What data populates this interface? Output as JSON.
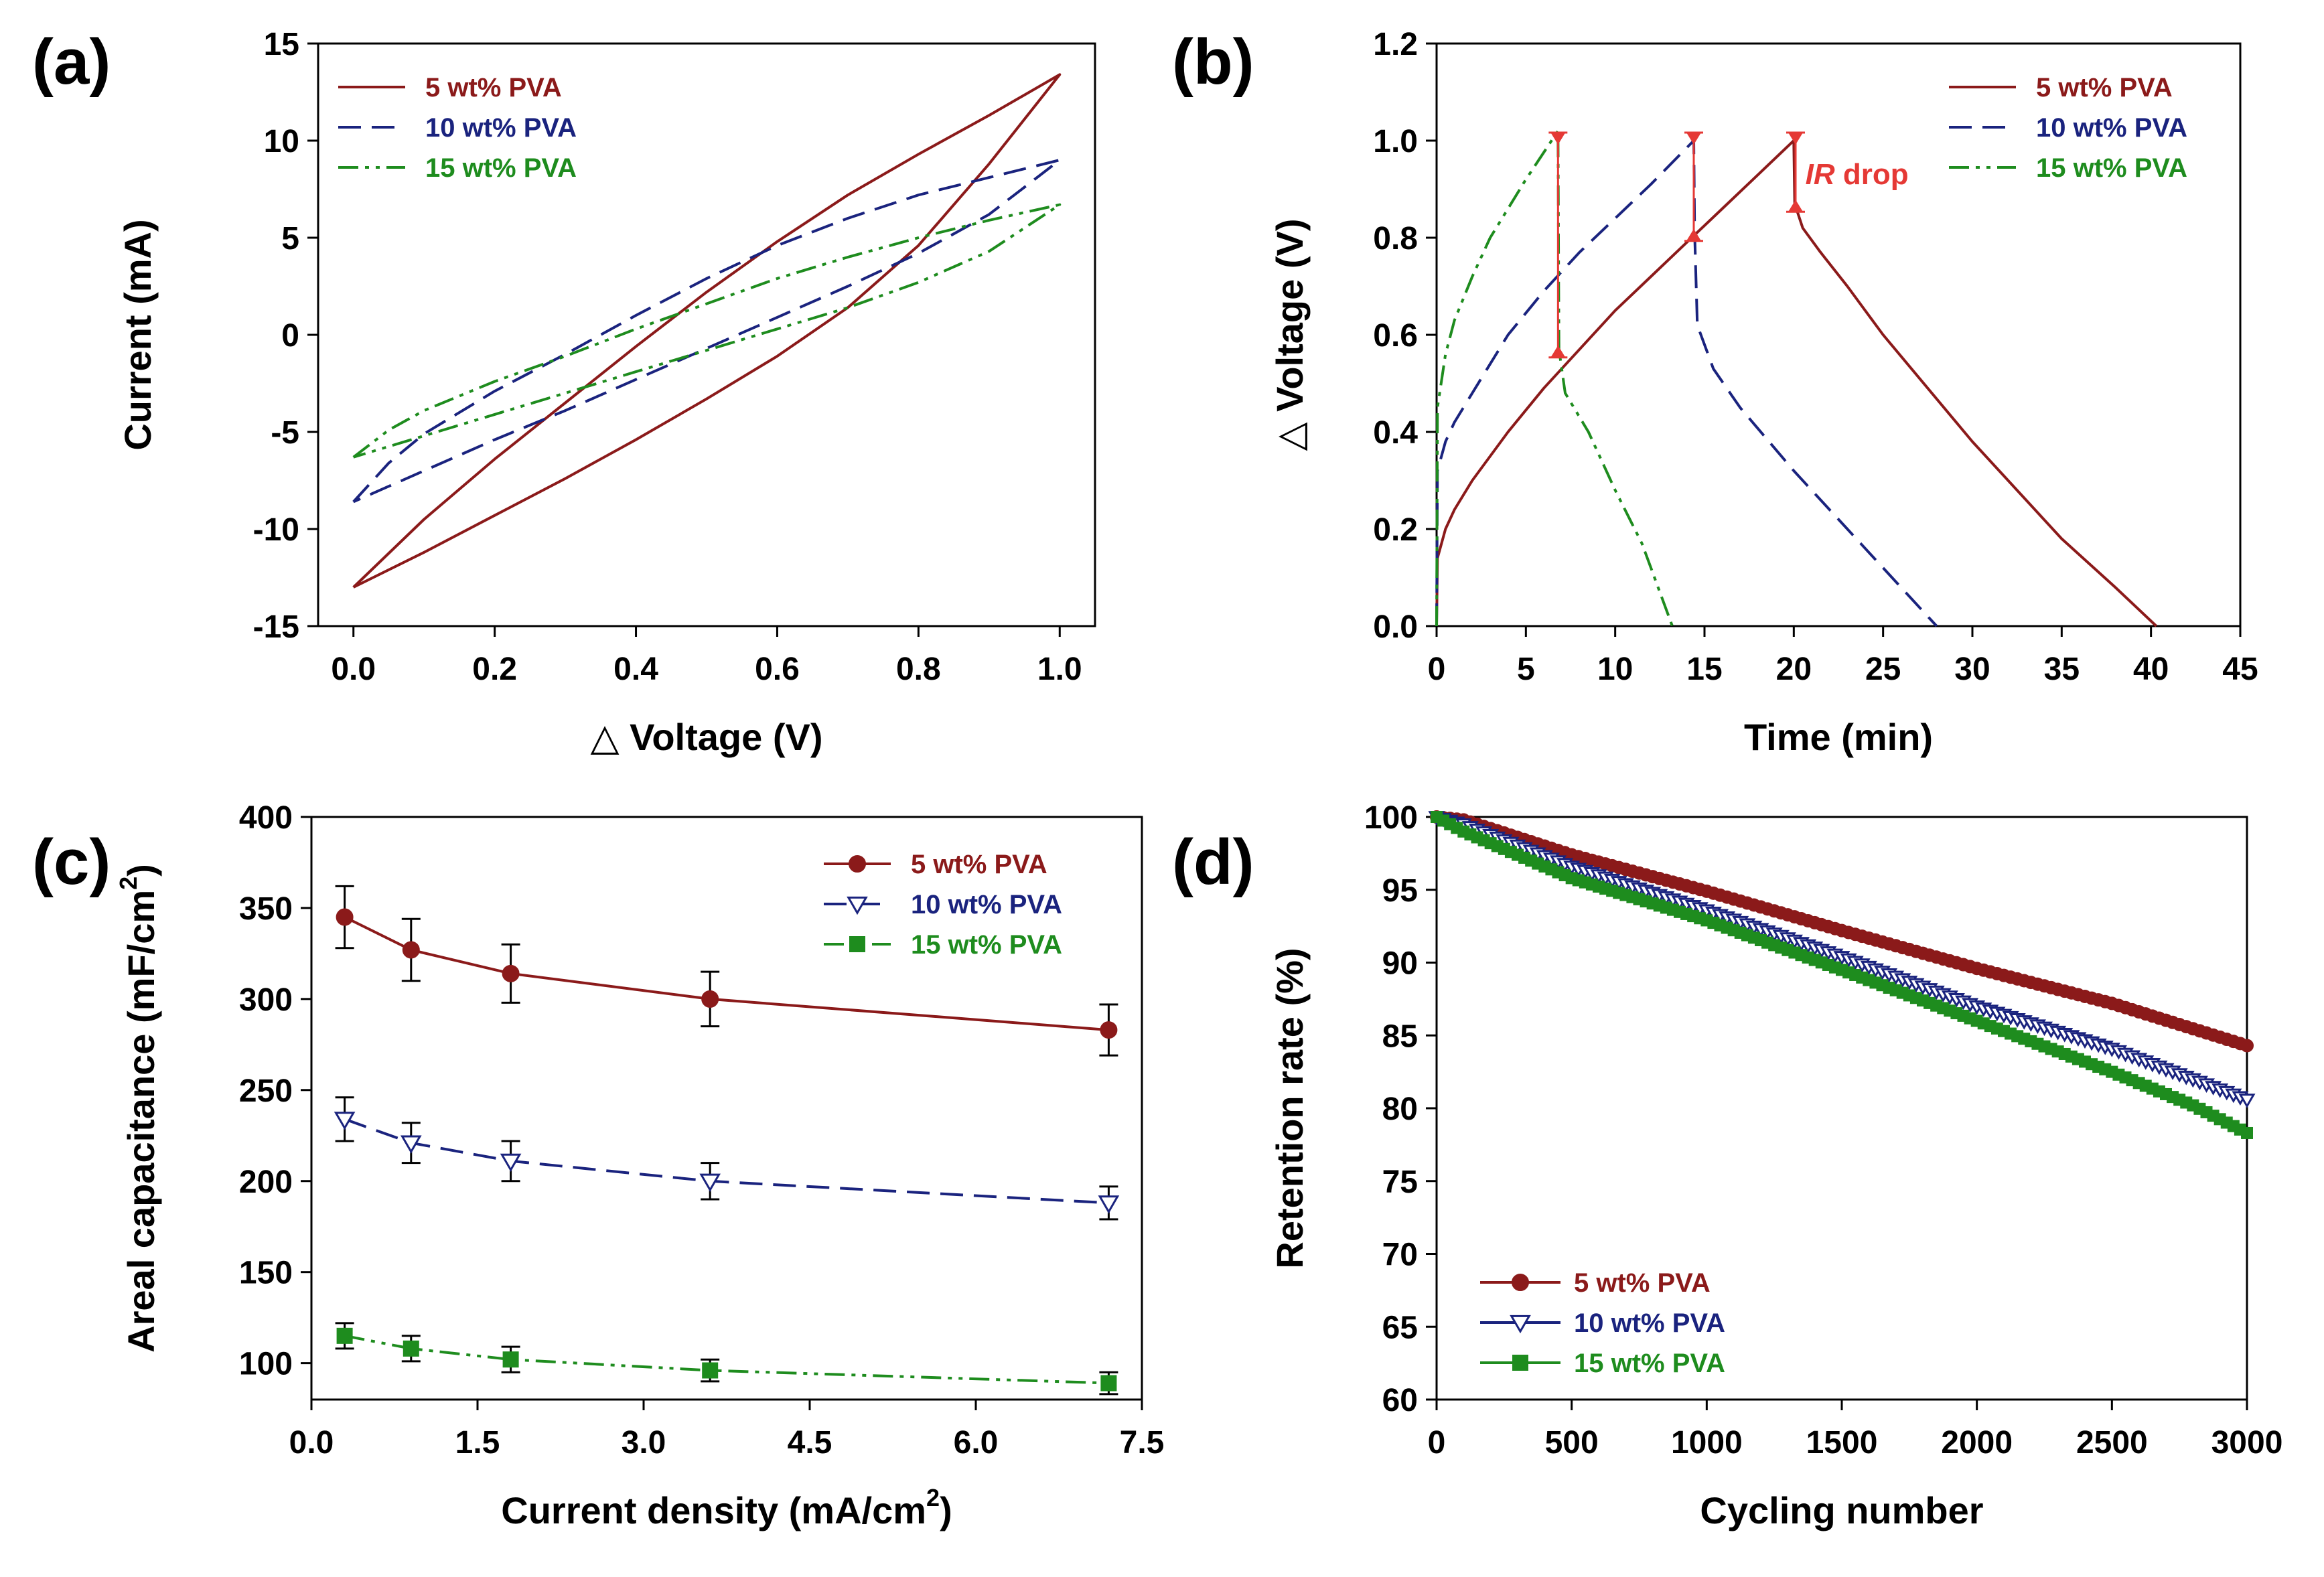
{
  "figure": {
    "colors": {
      "pva5": "#8B1A1A",
      "pva10": "#1A237E",
      "pva15": "#1E8C1E",
      "ir": "#E53935"
    }
  },
  "chart_data": [
    {
      "id": "a",
      "panel_label": "(a)",
      "type": "line",
      "title": "",
      "xlabel": "△ Voltage (V)",
      "ylabel": "Current (mA)",
      "xlim": [
        -0.05,
        1.05
      ],
      "ylim": [
        -15,
        15
      ],
      "xticks": [
        0.0,
        0.2,
        0.4,
        0.6,
        0.8,
        1.0
      ],
      "xtick_labels": [
        "0.0",
        "0.2",
        "0.4",
        "0.6",
        "0.8",
        "1.0"
      ],
      "yticks": [
        -15,
        -10,
        -5,
        0,
        5,
        10,
        15
      ],
      "ytick_labels": [
        "-15",
        "-10",
        "-5",
        "0",
        "5",
        "10",
        "15"
      ],
      "legend_position": "top-left",
      "series": [
        {
          "name": "5 wt% PVA",
          "style": "solid",
          "color_key": "pva5",
          "points": [
            [
              0.0,
              -13.0
            ],
            [
              0.1,
              -9.5
            ],
            [
              0.2,
              -6.4
            ],
            [
              0.3,
              -3.5
            ],
            [
              0.4,
              -0.6
            ],
            [
              0.5,
              2.2
            ],
            [
              0.6,
              4.8
            ],
            [
              0.7,
              7.2
            ],
            [
              0.8,
              9.3
            ],
            [
              0.9,
              11.3
            ],
            [
              1.0,
              13.4
            ],
            [
              0.9,
              8.8
            ],
            [
              0.8,
              4.6
            ],
            [
              0.7,
              1.4
            ],
            [
              0.6,
              -1.1
            ],
            [
              0.5,
              -3.3
            ],
            [
              0.4,
              -5.4
            ],
            [
              0.3,
              -7.4
            ],
            [
              0.2,
              -9.3
            ],
            [
              0.1,
              -11.2
            ],
            [
              0.0,
              -13.0
            ]
          ]
        },
        {
          "name": "10 wt% PVA",
          "style": "dashed",
          "color_key": "pva10",
          "points": [
            [
              0.0,
              -8.6
            ],
            [
              0.05,
              -6.6
            ],
            [
              0.1,
              -5.1
            ],
            [
              0.2,
              -2.9
            ],
            [
              0.3,
              -1.0
            ],
            [
              0.4,
              1.0
            ],
            [
              0.5,
              2.9
            ],
            [
              0.6,
              4.6
            ],
            [
              0.7,
              6.0
            ],
            [
              0.8,
              7.2
            ],
            [
              0.9,
              8.1
            ],
            [
              1.0,
              9.0
            ],
            [
              0.9,
              6.2
            ],
            [
              0.8,
              4.2
            ],
            [
              0.7,
              2.5
            ],
            [
              0.6,
              0.9
            ],
            [
              0.5,
              -0.7
            ],
            [
              0.4,
              -2.3
            ],
            [
              0.3,
              -3.9
            ],
            [
              0.2,
              -5.4
            ],
            [
              0.1,
              -7.0
            ],
            [
              0.0,
              -8.6
            ]
          ]
        },
        {
          "name": "15 wt% PVA",
          "style": "dashdot",
          "color_key": "pva15",
          "points": [
            [
              0.0,
              -6.3
            ],
            [
              0.05,
              -4.9
            ],
            [
              0.1,
              -3.9
            ],
            [
              0.2,
              -2.4
            ],
            [
              0.3,
              -1.1
            ],
            [
              0.4,
              0.3
            ],
            [
              0.5,
              1.6
            ],
            [
              0.6,
              2.9
            ],
            [
              0.7,
              4.0
            ],
            [
              0.8,
              5.0
            ],
            [
              0.9,
              5.9
            ],
            [
              1.0,
              6.7
            ],
            [
              0.9,
              4.3
            ],
            [
              0.8,
              2.7
            ],
            [
              0.7,
              1.4
            ],
            [
              0.6,
              0.3
            ],
            [
              0.5,
              -0.8
            ],
            [
              0.4,
              -1.9
            ],
            [
              0.3,
              -3.0
            ],
            [
              0.2,
              -4.1
            ],
            [
              0.1,
              -5.2
            ],
            [
              0.0,
              -6.3
            ]
          ]
        }
      ]
    },
    {
      "id": "b",
      "panel_label": "(b)",
      "type": "line",
      "title": "",
      "xlabel": "Time (min)",
      "ylabel": "△ Voltage (V)",
      "xlim": [
        0,
        45
      ],
      "ylim": [
        0,
        1.2
      ],
      "xticks": [
        0,
        5,
        10,
        15,
        20,
        25,
        30,
        35,
        40,
        45
      ],
      "xtick_labels": [
        "0",
        "5",
        "10",
        "15",
        "20",
        "25",
        "30",
        "35",
        "40",
        "45"
      ],
      "yticks": [
        0.0,
        0.2,
        0.4,
        0.6,
        0.8,
        1.0,
        1.2
      ],
      "ytick_labels": [
        "0.0",
        "0.2",
        "0.4",
        "0.6",
        "0.8",
        "1.0",
        "1.2"
      ],
      "legend_position": "top-right",
      "annotation": {
        "text": "IR drop",
        "x": 20.2,
        "y": 0.93
      },
      "ir_markers": [
        {
          "x": 6.8,
          "y_top": 1.0,
          "y_bottom": 0.57
        },
        {
          "x": 14.4,
          "y_top": 1.0,
          "y_bottom": 0.81
        },
        {
          "x": 20.1,
          "y_top": 1.0,
          "y_bottom": 0.87
        }
      ],
      "series": [
        {
          "name": "5 wt% PVA",
          "style": "solid",
          "color_key": "pva5",
          "points": [
            [
              0,
              0.0
            ],
            [
              0.05,
              0.14
            ],
            [
              0.5,
              0.2
            ],
            [
              1,
              0.24
            ],
            [
              2,
              0.3
            ],
            [
              4,
              0.4
            ],
            [
              6,
              0.49
            ],
            [
              8,
              0.57
            ],
            [
              10,
              0.65
            ],
            [
              12,
              0.72
            ],
            [
              14,
              0.79
            ],
            [
              16,
              0.86
            ],
            [
              18,
              0.93
            ],
            [
              20,
              1.0
            ],
            [
              20.05,
              0.87
            ],
            [
              20.5,
              0.82
            ],
            [
              21.5,
              0.77
            ],
            [
              23,
              0.7
            ],
            [
              25,
              0.6
            ],
            [
              30,
              0.38
            ],
            [
              35,
              0.18
            ],
            [
              38,
              0.08
            ],
            [
              40.3,
              0.0
            ]
          ]
        },
        {
          "name": "10 wt% PVA",
          "style": "dashed",
          "color_key": "pva10",
          "points": [
            [
              0,
              0.0
            ],
            [
              0.05,
              0.32
            ],
            [
              0.5,
              0.38
            ],
            [
              1,
              0.42
            ],
            [
              2,
              0.48
            ],
            [
              4,
              0.6
            ],
            [
              6,
              0.69
            ],
            [
              8,
              0.77
            ],
            [
              10,
              0.84
            ],
            [
              12,
              0.91
            ],
            [
              14.4,
              1.0
            ],
            [
              14.45,
              0.81
            ],
            [
              14.6,
              0.62
            ],
            [
              15.5,
              0.53
            ],
            [
              17,
              0.45
            ],
            [
              20,
              0.32
            ],
            [
              23,
              0.2
            ],
            [
              26,
              0.08
            ],
            [
              28,
              0.0
            ]
          ]
        },
        {
          "name": "15 wt% PVA",
          "style": "dashdot",
          "color_key": "pva15",
          "points": [
            [
              0,
              0.0
            ],
            [
              0.05,
              0.45
            ],
            [
              0.5,
              0.56
            ],
            [
              1,
              0.63
            ],
            [
              2,
              0.72
            ],
            [
              3,
              0.8
            ],
            [
              4,
              0.86
            ],
            [
              5,
              0.92
            ],
            [
              6.8,
              1.02
            ],
            [
              6.85,
              0.57
            ],
            [
              7.2,
              0.48
            ],
            [
              8.5,
              0.4
            ],
            [
              10,
              0.28
            ],
            [
              11.5,
              0.17
            ],
            [
              13.2,
              0.0
            ]
          ]
        }
      ]
    },
    {
      "id": "c",
      "panel_label": "(c)",
      "type": "line",
      "title": "",
      "xlabel_main": "Current density (mA/cm",
      "xlabel_sup": "2",
      "xlabel_tail": ")",
      "ylabel_main": "Areal capacitance (mF/cm",
      "ylabel_sup": "2",
      "ylabel_tail": ")",
      "xlim": [
        0,
        7.5
      ],
      "ylim": [
        80,
        400
      ],
      "xticks": [
        0.0,
        1.5,
        3.0,
        4.5,
        6.0,
        7.5
      ],
      "xtick_labels": [
        "0.0",
        "1.5",
        "3.0",
        "4.5",
        "6.0",
        "7.5"
      ],
      "yticks": [
        100,
        150,
        200,
        250,
        300,
        350,
        400
      ],
      "ytick_labels": [
        "100",
        "150",
        "200",
        "250",
        "300",
        "350",
        "400"
      ],
      "legend_position": "top-right",
      "x": [
        0.3,
        0.9,
        1.8,
        3.6,
        7.2
      ],
      "series": [
        {
          "name": "5 wt% PVA",
          "style": "solid",
          "marker": "circle",
          "color_key": "pva5",
          "values": [
            345,
            327,
            314,
            300,
            283
          ],
          "errors": [
            17,
            17,
            16,
            15,
            14
          ]
        },
        {
          "name": "10 wt% PVA",
          "style": "dashed",
          "marker": "triangle-down-open",
          "color_key": "pva10",
          "values": [
            234,
            221,
            211,
            200,
            188
          ],
          "errors": [
            12,
            11,
            11,
            10,
            9
          ]
        },
        {
          "name": "15 wt% PVA",
          "style": "dashdot",
          "marker": "square",
          "color_key": "pva15",
          "values": [
            115,
            108,
            102,
            96,
            89
          ],
          "errors": [
            7,
            7,
            7,
            6,
            6
          ]
        }
      ]
    },
    {
      "id": "d",
      "panel_label": "(d)",
      "type": "line",
      "title": "",
      "xlabel": "Cycling number",
      "ylabel": "Retention rate (%)",
      "xlim": [
        0,
        3000
      ],
      "ylim": [
        60,
        100
      ],
      "xticks": [
        0,
        500,
        1000,
        1500,
        2000,
        2500,
        3000
      ],
      "xtick_labels": [
        "0",
        "500",
        "1000",
        "1500",
        "2000",
        "2500",
        "3000"
      ],
      "yticks": [
        60,
        65,
        70,
        75,
        80,
        85,
        90,
        95,
        100
      ],
      "ytick_labels": [
        "60",
        "65",
        "70",
        "75",
        "80",
        "85",
        "90",
        "95",
        "100"
      ],
      "legend_position": "bottom-left",
      "marker_step": 25,
      "series": [
        {
          "name": "5 wt% PVA",
          "marker": "circle",
          "color_key": "pva5",
          "points": [
            [
              0,
              100
            ],
            [
              100,
              99.8
            ],
            [
              500,
              97.4
            ],
            [
              1000,
              94.9
            ],
            [
              1500,
              92.2
            ],
            [
              2000,
              89.6
            ],
            [
              2500,
              87.2
            ],
            [
              3000,
              84.3
            ]
          ]
        },
        {
          "name": "10 wt% PVA",
          "marker": "triangle-down-open",
          "color_key": "pva10",
          "points": [
            [
              0,
              100
            ],
            [
              100,
              99.5
            ],
            [
              500,
              96.6
            ],
            [
              1000,
              93.6
            ],
            [
              1500,
              90.4
            ],
            [
              2000,
              87.0
            ],
            [
              2500,
              84.1
            ],
            [
              3000,
              80.6
            ]
          ]
        },
        {
          "name": "15 wt% PVA",
          "marker": "square",
          "color_key": "pva15",
          "points": [
            [
              0,
              100
            ],
            [
              100,
              99.0
            ],
            [
              500,
              95.8
            ],
            [
              1000,
              92.9
            ],
            [
              1500,
              89.5
            ],
            [
              2000,
              86.0
            ],
            [
              2500,
              82.5
            ],
            [
              2800,
              80.2
            ],
            [
              3000,
              78.3
            ]
          ]
        }
      ]
    }
  ]
}
